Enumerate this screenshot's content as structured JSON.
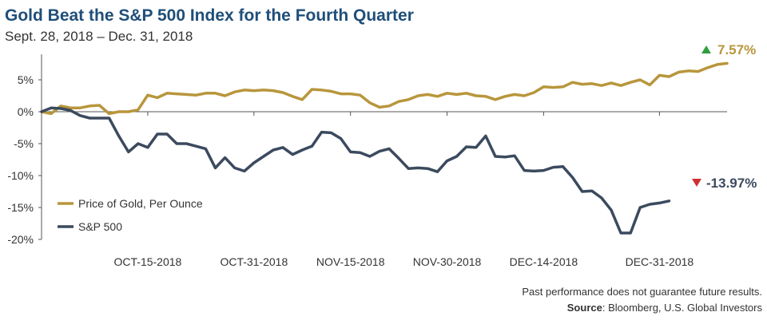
{
  "chart_data": {
    "type": "line",
    "title": "Gold Beat the S&P 500 Index for the Fourth Quarter",
    "subtitle": "Sept. 28, 2018 – Dec. 31, 2018",
    "x_tick_labels": [
      "OCT-15-2018",
      "OCT-31-2018",
      "NOV-15-2018",
      "NOV-30-2018",
      "DEC-14-2018",
      "DEC-31-2018"
    ],
    "x_tick_index": [
      11,
      22,
      32,
      42,
      52,
      64
    ],
    "y_ticks": [
      5,
      0,
      -5,
      -10,
      -15,
      -20
    ],
    "y_tick_labels": [
      "5%",
      "0%",
      "-5%",
      "-10%",
      "-15%",
      "-20%"
    ],
    "ylim": [
      -20,
      9
    ],
    "series": [
      {
        "name": "Price of Gold, Per Ounce",
        "color": "#b8963c",
        "final_label": "7.57%",
        "values": [
          0,
          -0.3,
          0.9,
          0.6,
          0.6,
          0.9,
          1.0,
          -0.3,
          0,
          0,
          0.3,
          2.6,
          2.2,
          2.9,
          2.8,
          2.7,
          2.6,
          2.9,
          2.9,
          2.5,
          3.1,
          3.4,
          3.3,
          3.4,
          3.3,
          3.0,
          2.4,
          1.9,
          3.5,
          3.4,
          3.2,
          2.8,
          2.8,
          2.6,
          1.4,
          0.7,
          0.9,
          1.6,
          1.9,
          2.5,
          2.7,
          2.4,
          2.9,
          2.7,
          2.9,
          2.5,
          2.4,
          1.9,
          2.4,
          2.7,
          2.5,
          3.0,
          3.9,
          3.8,
          3.9,
          4.6,
          4.3,
          4.4,
          4.1,
          4.5,
          4.1,
          4.6,
          5.0,
          4.2,
          5.7,
          5.5,
          6.2,
          6.4,
          6.3,
          6.9,
          7.4,
          7.57
        ]
      },
      {
        "name": "S&P 500",
        "color": "#3b4a5e",
        "final_label": "-13.97%",
        "values": [
          0,
          0.6,
          0.5,
          0.2,
          -0.6,
          -1.0,
          -1.0,
          -1.0,
          -3.8,
          -6.3,
          -5.0,
          -5.6,
          -3.5,
          -3.5,
          -5.0,
          -5.0,
          -5.4,
          -5.8,
          -8.8,
          -7.2,
          -8.8,
          -9.3,
          -8.0,
          -7.0,
          -6.0,
          -5.6,
          -6.7,
          -6.0,
          -5.4,
          -3.2,
          -3.3,
          -4.2,
          -6.3,
          -6.4,
          -7.0,
          -6.2,
          -5.8,
          -7.3,
          -8.9,
          -8.8,
          -8.9,
          -9.4,
          -7.7,
          -7.0,
          -5.5,
          -5.6,
          -3.8,
          -7.0,
          -7.1,
          -6.9,
          -9.2,
          -9.3,
          -9.2,
          -8.7,
          -8.6,
          -10.3,
          -12.5,
          -12.4,
          -13.5,
          -15.4,
          -19.0,
          -19.0,
          -15.0,
          -14.5,
          -14.3,
          -13.97
        ]
      }
    ],
    "legend": {
      "position": "left"
    },
    "annotations": {
      "gold_final": "7.57%",
      "sp_final": "-13.97%"
    }
  },
  "footer": {
    "disclaimer": "Past performance does not guarantee future results.",
    "source_label": "Source",
    "source_text": ": Bloomberg, U.S. Global Investors"
  },
  "colors": {
    "gold": "#b8963c",
    "sp": "#3b4a5e",
    "up_arrow": "#2e9e3e",
    "down_arrow": "#d03030",
    "title": "#1f4e79"
  }
}
